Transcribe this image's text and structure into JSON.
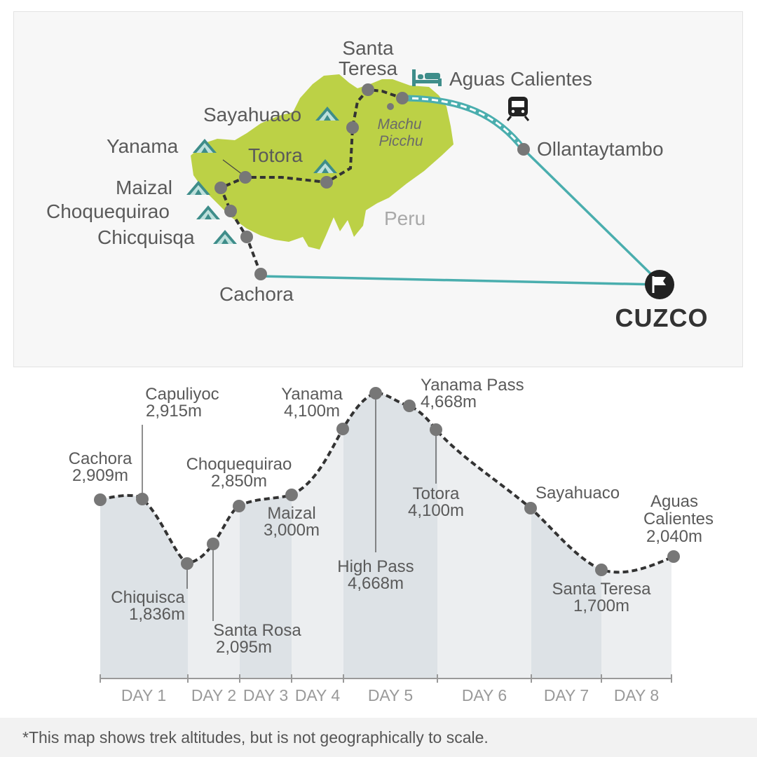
{
  "map": {
    "country_label": "Peru",
    "city_label": "CUZCO",
    "places": {
      "santa_teresa": [
        "Santa",
        "Teresa"
      ],
      "aguas_calientes": "Aguas Calientes",
      "sayahuaco": "Sayahuaco",
      "machu_picchu": [
        "Machu",
        "Picchu"
      ],
      "ollantaytambo": "Ollantaytambo",
      "yanama": "Yanama",
      "totora": "Totora",
      "maizal": "Maizal",
      "choquequirao": "Choquequirao",
      "chicquisqa": "Chicquisqa",
      "cachora": "Cachora"
    },
    "icons": [
      "tent-icon",
      "bed-icon",
      "train-icon",
      "flag-icon"
    ],
    "colors": {
      "land": "#bcd146",
      "route_road": "#4aaeae",
      "route_trek": "#3a3a3a",
      "marker": "#777777"
    }
  },
  "profile": {
    "labels": {
      "cachora": [
        "Cachora",
        "2,909m"
      ],
      "capuliyoc": [
        "Capuliyoc",
        "2,915m"
      ],
      "chiquisca": [
        "Chiquisca",
        "1,836m"
      ],
      "santa_rosa": [
        "Santa Rosa",
        "2,095m"
      ],
      "choquequirao": [
        "Choquequirao",
        "2,850m"
      ],
      "maizal": [
        "Maizal",
        "3,000m"
      ],
      "yanama": [
        "Yanama",
        "4,100m"
      ],
      "high_pass": [
        "High Pass",
        "4,668m"
      ],
      "yanama_pass": [
        "Yanama Pass",
        "4,668m"
      ],
      "totora": [
        "Totora",
        "4,100m"
      ],
      "sayahuaco": [
        "Sayahuaco"
      ],
      "santa_teresa": [
        "Santa Teresa",
        "1,700m"
      ],
      "aguas_calientes": [
        "Aguas",
        "Calientes",
        "2,040m"
      ]
    },
    "days": [
      "DAY 1",
      "DAY 2",
      "DAY 3",
      "DAY 4",
      "DAY 5",
      "DAY 6",
      "DAY 7",
      "DAY 8"
    ],
    "colors": {
      "band_dark": "#dde2e6",
      "band_light": "#eceef0"
    }
  },
  "footnote": "*This map shows trek altitudes, but is not geographically to scale."
}
